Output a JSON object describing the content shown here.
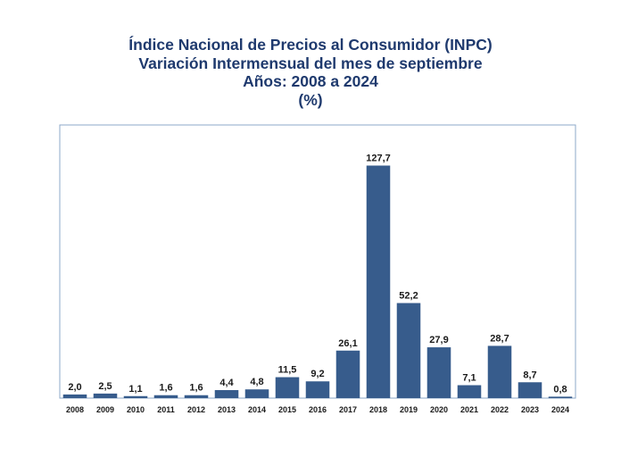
{
  "chart_data": {
    "type": "bar",
    "title": "Índice Nacional de Precios al Consumidor (INPC)",
    "subtitle": "Variación Intermensual del mes de septiembre",
    "subtitle2": "Años: 2008 a 2024",
    "unit": "(%)",
    "categories": [
      "2008",
      "2009",
      "2010",
      "2011",
      "2012",
      "2013",
      "2014",
      "2015",
      "2016",
      "2017",
      "2018",
      "2019",
      "2020",
      "2021",
      "2022",
      "2023",
      "2024"
    ],
    "values": [
      2.0,
      2.5,
      1.1,
      1.6,
      1.6,
      4.4,
      4.8,
      11.5,
      9.2,
      26.1,
      127.7,
      52.2,
      27.9,
      7.1,
      28.7,
      8.7,
      0.8
    ],
    "value_labels": [
      "2,0",
      "2,5",
      "1,1",
      "1,6",
      "1,6",
      "4,4",
      "4,8",
      "11,5",
      "9,2",
      "26,1",
      "127,7",
      "52,2",
      "27,9",
      "7,1",
      "28,7",
      "8,7",
      "0,8"
    ],
    "ylim": [
      0,
      150
    ],
    "grid": false,
    "legend": "none",
    "colors": {
      "bar": "#375c8c",
      "frame": "#8ea9c9",
      "title": "#1f3a6e"
    }
  }
}
